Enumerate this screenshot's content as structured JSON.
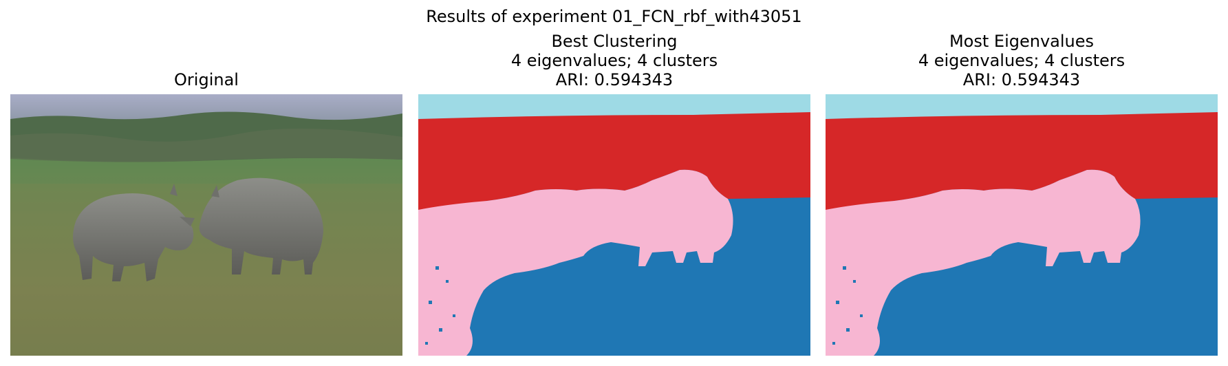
{
  "figure": {
    "suptitle": "Results of experiment 01_FCN_rbf_with43051"
  },
  "panels": [
    {
      "title_lines": [
        "Original"
      ]
    },
    {
      "title_lines": [
        "Best Clustering",
        "4 eigenvalues; 4 clusters",
        "ARI: 0.594343"
      ]
    },
    {
      "title_lines": [
        "Most Eigenvalues",
        "4 eigenvalues; 4 clusters",
        "ARI: 0.594343"
      ]
    }
  ],
  "colors": {
    "cluster_sky": "#9edae5",
    "cluster_band": "#d62728",
    "cluster_rhinos": "#f7b6d2",
    "cluster_ground": "#1f77b4"
  }
}
